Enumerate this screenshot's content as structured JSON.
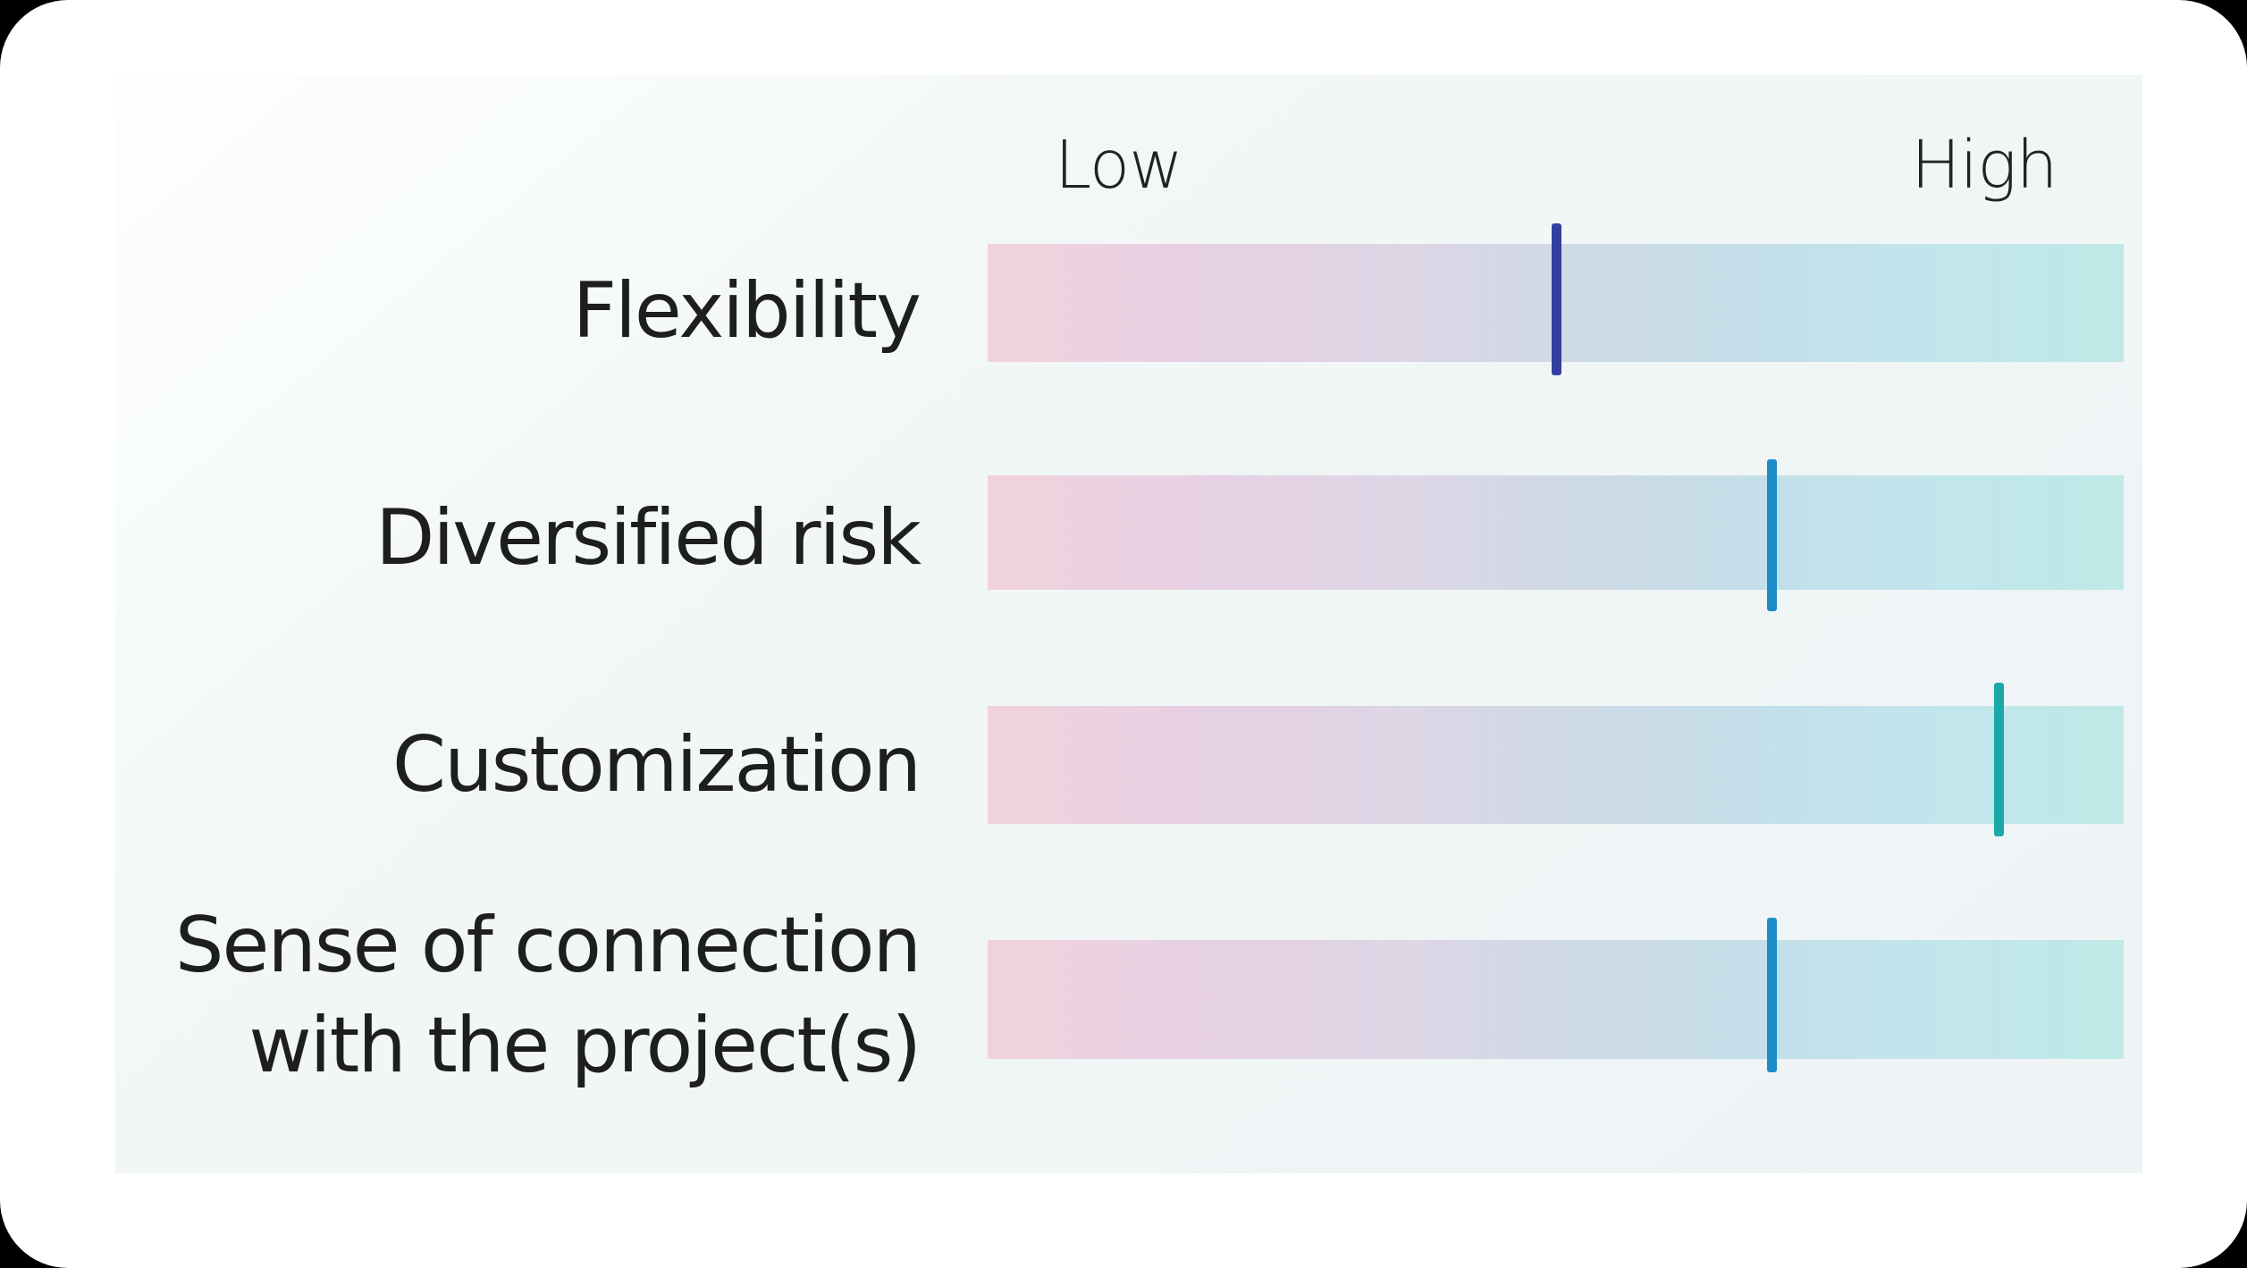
{
  "chart_data": {
    "type": "bar",
    "subtype": "gradient-scale-markers",
    "title": "",
    "xlabel": "",
    "ylabel": "",
    "scale": {
      "low_label": "Low",
      "high_label": "High",
      "range": [
        0,
        1
      ]
    },
    "categories": [
      "Flexibility",
      "Diversified risk",
      "Customization",
      "Sense of connection with the project(s)"
    ],
    "values": [
      0.5,
      0.69,
      0.89,
      0.69
    ],
    "marker_colors": [
      "#3340a0",
      "#1b8cc8",
      "#1aa8a8",
      "#1b8cc8"
    ],
    "bar_gradient": [
      "#f1d2dc",
      "#e6d0e4",
      "#cbdae6",
      "#bfe8e6"
    ],
    "grid": false,
    "legend": "none"
  },
  "labels": {
    "low": "Low",
    "high": "High",
    "rows": [
      "Flexibility",
      "Diversified risk",
      "Customization",
      "Sense of connection\nwith the project(s)"
    ]
  }
}
